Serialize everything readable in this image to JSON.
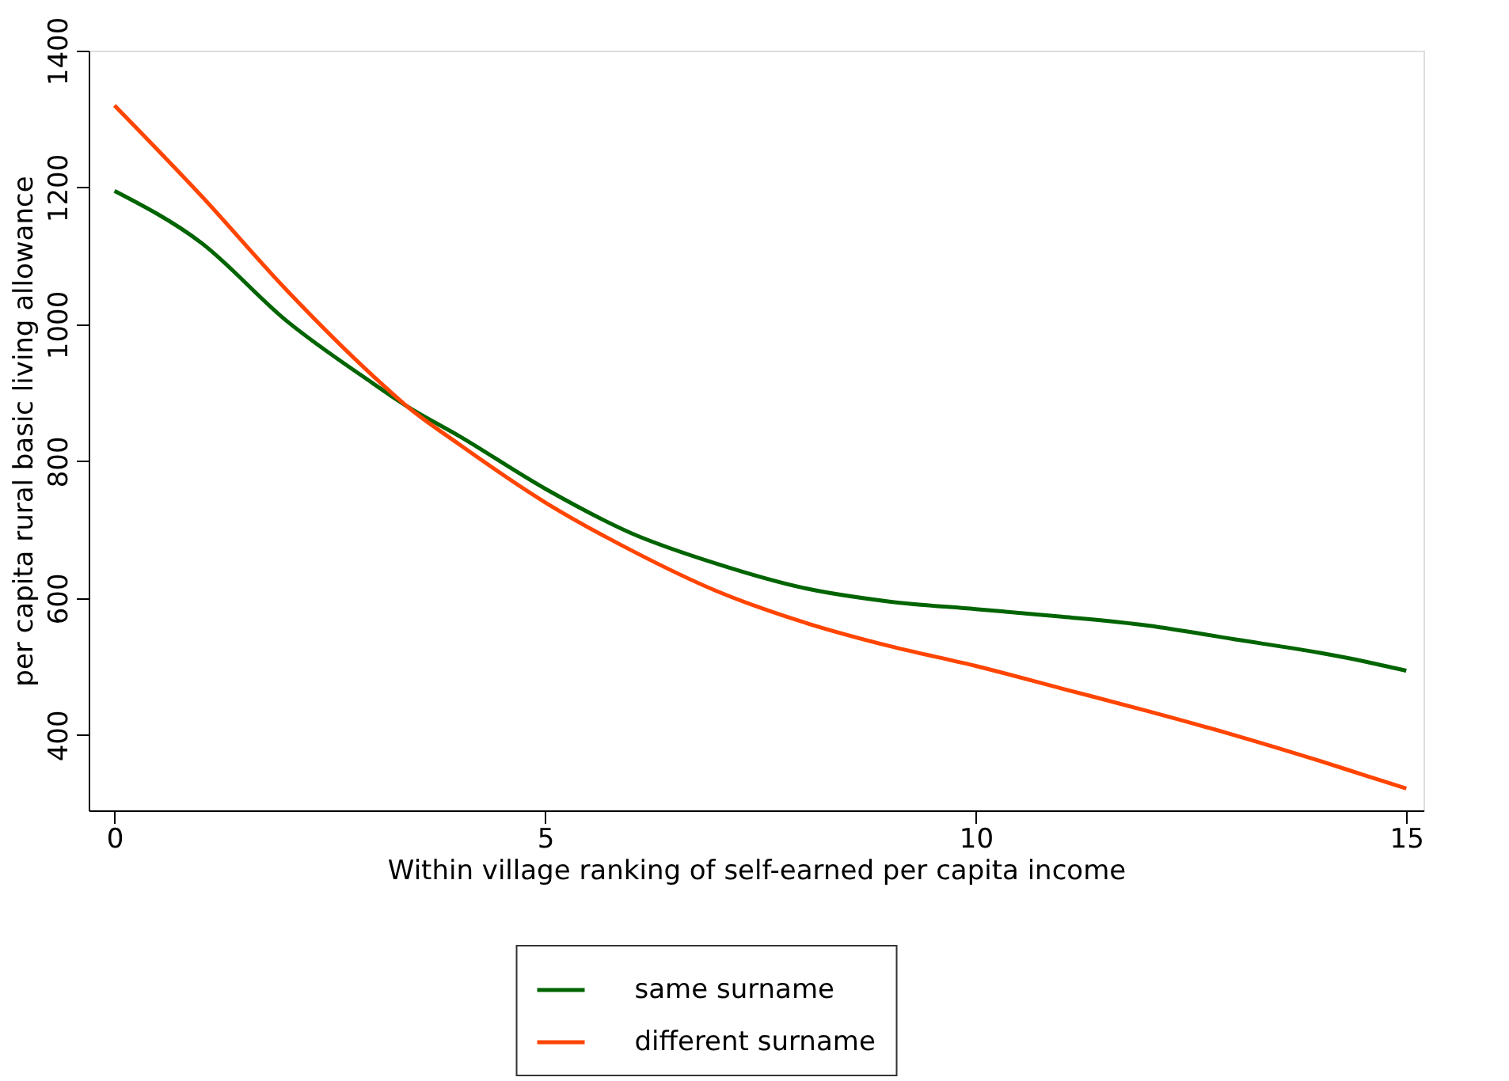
{
  "chart_data": {
    "type": "line",
    "xlabel": "Within village ranking of self-earned per capita income",
    "ylabel": "per capita rural basic living allowance",
    "xlim": [
      -0.3,
      15.2
    ],
    "xticks": [
      0,
      5,
      10,
      15
    ],
    "ylim": [
      290,
      1400
    ],
    "yticks": [
      400,
      600,
      800,
      {
        "value": 1000,
        "label": "1000"
      },
      {
        "value": 1200,
        "label": "1200"
      },
      {
        "value": 1400,
        "label": "1400"
      }
    ],
    "grid": false,
    "legend": "bottom",
    "marker": "none",
    "line_style": "solid",
    "x": [
      0,
      1,
      2,
      3,
      3.4,
      4,
      5,
      6,
      7,
      8,
      9,
      10,
      11,
      12,
      13,
      14,
      14.5,
      15
    ],
    "series": [
      {
        "name": "same surname",
        "color": "#006400",
        "values": [
          1195,
          1120,
          1005,
          914,
          880,
          837,
          760,
          695,
          650,
          615,
          595,
          584,
          573,
          560,
          540,
          520,
          508,
          494
        ]
      },
      {
        "name": "different surname",
        "color": "#ff4500",
        "values": [
          1320,
          1189,
          1050,
          925,
          880,
          825,
          740,
          670,
          610,
          565,
          530,
          501,
          468,
          435,
          400,
          362,
          342,
          322
        ]
      }
    ]
  }
}
